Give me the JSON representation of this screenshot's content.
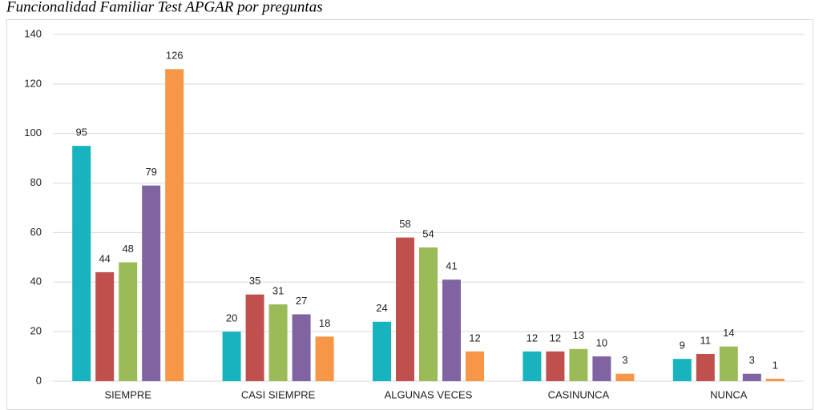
{
  "chart_data": {
    "type": "bar",
    "title": "Funcionalidad Familiar Test APGAR por preguntas",
    "categories": [
      "SIEMPRE",
      "CASI SIEMPRE",
      "ALGUNAS VECES",
      "CASINUNCA",
      "NUNCA"
    ],
    "series": [
      {
        "color": "#17b3bf",
        "values": [
          95,
          20,
          24,
          12,
          9
        ]
      },
      {
        "color": "#c0504d",
        "values": [
          44,
          35,
          58,
          12,
          11
        ]
      },
      {
        "color": "#9bbb59",
        "values": [
          48,
          31,
          54,
          13,
          14
        ]
      },
      {
        "color": "#8064a2",
        "values": [
          79,
          27,
          41,
          10,
          3
        ]
      },
      {
        "color": "#f79646",
        "values": [
          126,
          18,
          12,
          3,
          1
        ]
      }
    ],
    "ylim": [
      0,
      140
    ],
    "yticks": [
      0,
      20,
      40,
      60,
      80,
      100,
      120,
      140
    ],
    "grid": true
  }
}
